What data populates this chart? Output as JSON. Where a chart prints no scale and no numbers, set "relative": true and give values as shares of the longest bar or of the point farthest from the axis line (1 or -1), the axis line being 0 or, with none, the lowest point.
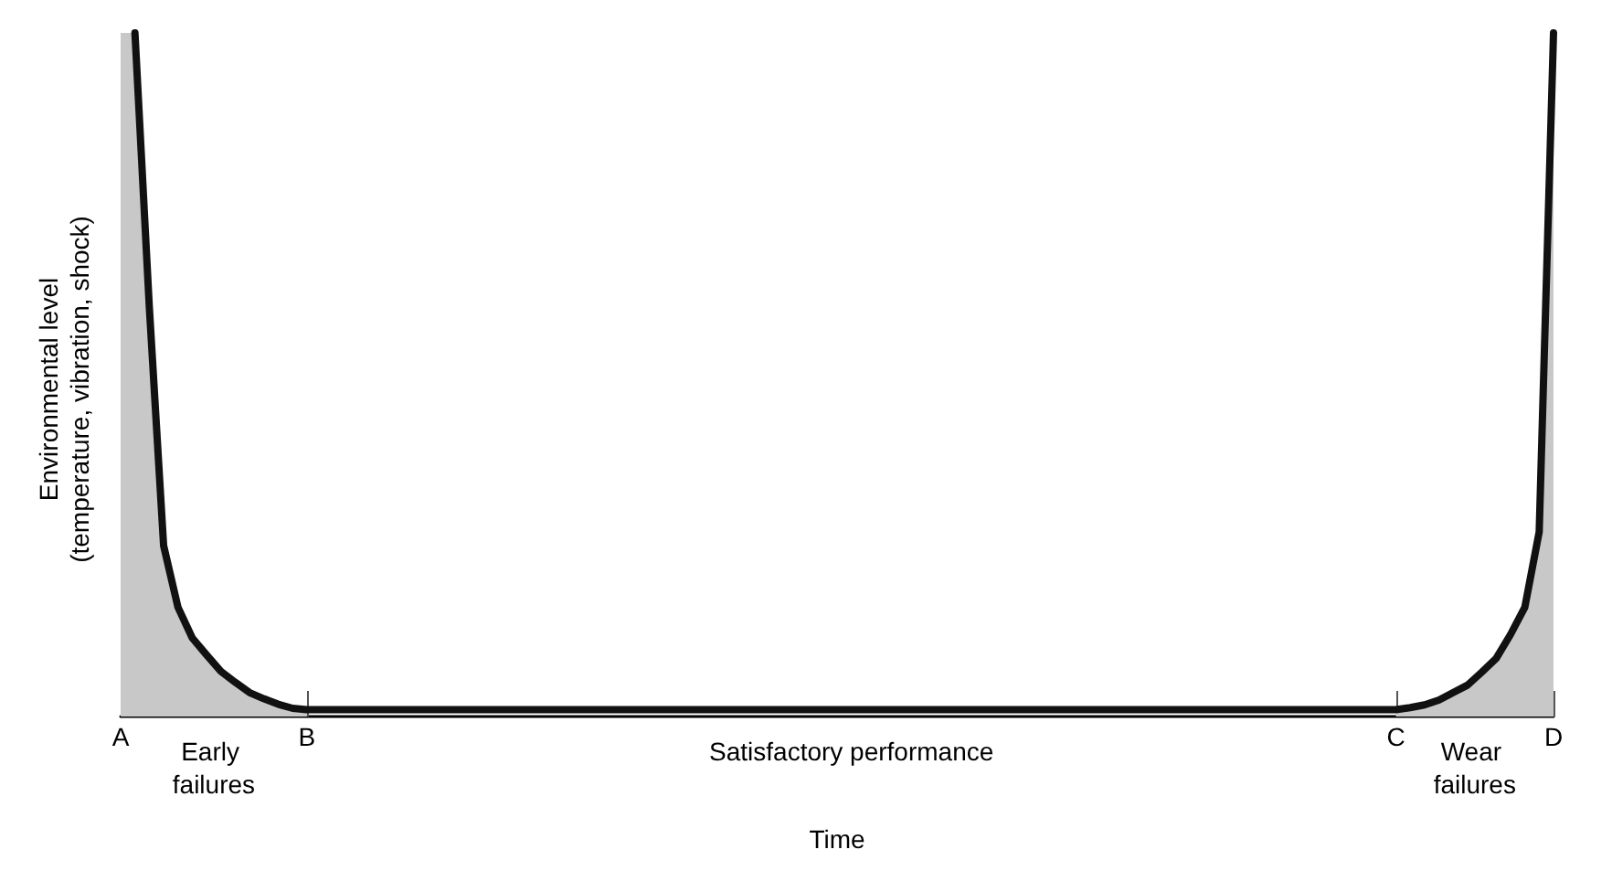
{
  "chart_data": {
    "type": "line",
    "relative": true,
    "xlabel": "Time",
    "ylabel": "Environmental level\n(temperature, vibration, shock)",
    "categories": [
      "A",
      null,
      null,
      null,
      null,
      null,
      null,
      null,
      null,
      null,
      null,
      null,
      null,
      "B",
      null,
      null,
      null,
      null,
      null,
      null,
      null,
      null,
      null,
      null,
      null,
      null,
      null,
      null,
      null,
      null,
      null,
      null,
      null,
      null,
      null,
      null,
      null,
      null,
      null,
      null,
      null,
      null,
      null,
      null,
      null,
      null,
      null,
      null,
      null,
      null,
      null,
      null,
      null,
      null,
      null,
      null,
      null,
      null,
      null,
      null,
      null,
      null,
      null,
      null,
      null,
      null,
      null,
      null,
      null,
      null,
      null,
      null,
      null,
      null,
      null,
      null,
      null,
      null,
      null,
      null,
      null,
      null,
      null,
      null,
      null,
      null,
      null,
      null,
      null,
      "C",
      null,
      null,
      null,
      null,
      null,
      null,
      null,
      null,
      null,
      null,
      "D"
    ],
    "annotations": [
      "Early failures",
      "Satisfactory performance",
      "Wear failures"
    ],
    "grid": false,
    "marker": "none",
    "line_style": "solid",
    "series": [
      {
        "type": "area",
        "color": "#c8c8c8",
        "values": [
          1,
          1,
          0.6,
          0.25,
          0.16,
          0.115,
          0.09,
          0.066,
          0.05,
          0.035,
          0.026,
          0.018,
          0.012,
          0.01,
          null,
          null,
          null,
          null,
          null,
          null,
          null,
          null,
          null,
          null,
          null,
          null,
          null,
          null,
          null,
          null,
          null,
          null,
          null,
          null,
          null,
          null,
          null,
          null,
          null,
          null,
          null,
          null,
          null,
          null,
          null,
          null,
          null,
          null,
          null,
          null,
          null,
          null,
          null,
          null,
          null,
          null,
          null,
          null,
          null,
          null,
          null,
          null,
          null,
          null,
          null,
          null,
          null,
          null,
          null,
          null,
          null,
          null,
          null,
          null,
          null,
          null,
          null,
          null,
          null,
          null,
          null,
          null,
          null,
          null,
          null,
          null,
          null,
          null,
          null,
          null,
          null,
          null,
          null,
          null,
          null,
          null,
          null,
          null,
          null,
          null,
          null
        ]
      },
      {
        "type": "area",
        "color": "#c8c8c8",
        "values": [
          null,
          null,
          null,
          null,
          null,
          null,
          null,
          null,
          null,
          null,
          null,
          null,
          null,
          null,
          null,
          null,
          null,
          null,
          null,
          null,
          null,
          null,
          null,
          null,
          null,
          null,
          null,
          null,
          null,
          null,
          null,
          null,
          null,
          null,
          null,
          null,
          null,
          null,
          null,
          null,
          null,
          null,
          null,
          null,
          null,
          null,
          null,
          null,
          null,
          null,
          null,
          null,
          null,
          null,
          null,
          null,
          null,
          null,
          null,
          null,
          null,
          null,
          null,
          null,
          null,
          null,
          null,
          null,
          null,
          null,
          null,
          null,
          null,
          null,
          null,
          null,
          null,
          null,
          null,
          null,
          null,
          null,
          null,
          null,
          null,
          null,
          null,
          null,
          null,
          0.01,
          0.013,
          0.017,
          0.024,
          0.035,
          0.046,
          0.065,
          0.085,
          0.12,
          0.16,
          0.27,
          1
        ]
      },
      {
        "color": "#111111",
        "values": [
          null,
          1,
          0.6,
          0.25,
          0.16,
          0.115,
          0.09,
          0.066,
          0.05,
          0.035,
          0.026,
          0.018,
          0.012,
          0.01,
          0.01,
          0.01,
          0.01,
          0.01,
          0.01,
          0.01,
          0.01,
          0.01,
          0.01,
          0.01,
          0.01,
          0.01,
          0.01,
          0.01,
          0.01,
          0.01,
          0.01,
          0.01,
          0.01,
          0.01,
          0.01,
          0.01,
          0.01,
          0.01,
          0.01,
          0.01,
          0.01,
          0.01,
          0.01,
          0.01,
          0.01,
          0.01,
          0.01,
          0.01,
          0.01,
          0.01,
          0.01,
          0.01,
          0.01,
          0.01,
          0.01,
          0.01,
          0.01,
          0.01,
          0.01,
          0.01,
          0.01,
          0.01,
          0.01,
          0.01,
          0.01,
          0.01,
          0.01,
          0.01,
          0.01,
          0.01,
          0.01,
          0.01,
          0.01,
          0.01,
          0.01,
          0.01,
          0.01,
          0.01,
          0.01,
          0.01,
          0.01,
          0.01,
          0.01,
          0.01,
          0.01,
          0.01,
          0.01,
          0.01,
          0.01,
          0.01,
          0.013,
          0.017,
          0.024,
          0.035,
          0.046,
          0.065,
          0.085,
          0.12,
          0.16,
          0.27,
          1
        ]
      }
    ]
  }
}
